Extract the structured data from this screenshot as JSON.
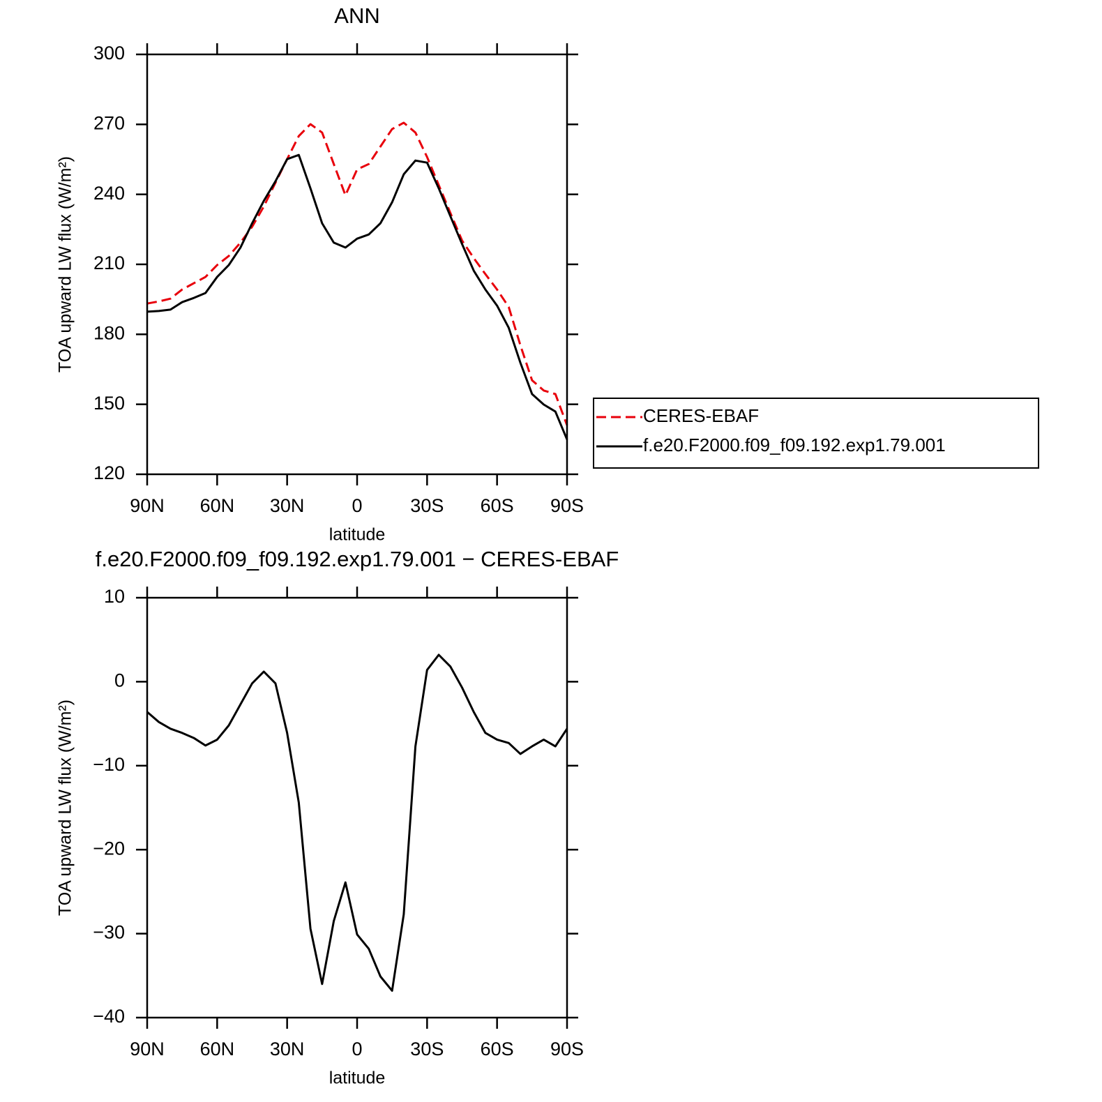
{
  "chart_data": [
    {
      "type": "line",
      "title": "ANN",
      "xlabel": "latitude",
      "ylabel": "TOA upward LW flux (W/m²)",
      "x": [
        90,
        85,
        80,
        75,
        70,
        65,
        60,
        55,
        50,
        45,
        40,
        35,
        30,
        25,
        20,
        15,
        10,
        5,
        0,
        -5,
        -10,
        -15,
        -20,
        -25,
        -30,
        -35,
        -40,
        -45,
        -50,
        -55,
        -60,
        -65,
        -70,
        -75,
        -80,
        -85,
        -90
      ],
      "series": [
        {
          "name": "CERES-EBAF",
          "color": "#e8000b",
          "linestyle": "dashed",
          "values": [
            193.2,
            194.1,
            195.3,
            199.2,
            201.9,
            204.6,
            209.7,
            213.6,
            219.3,
            226.1,
            234.8,
            245,
            255.1,
            265,
            270.1,
            266.5,
            253,
            239.6,
            250.7,
            253,
            260.5,
            268,
            270.7,
            266.5,
            256,
            244,
            232,
            220.2,
            212.7,
            205.8,
            199.2,
            191.7,
            175.3,
            160.3,
            155.9,
            154.4,
            141
          ]
        },
        {
          "name": "f.e20.F2000.f09_f09.192.exp1.79.001",
          "color": "#000000",
          "linestyle": "solid",
          "values": [
            189.7,
            190,
            190.6,
            193.8,
            195.6,
            197.7,
            204.6,
            209.7,
            217.2,
            227.6,
            237.2,
            245.6,
            255.1,
            256.9,
            242.6,
            227.6,
            219.3,
            217.2,
            221,
            222.8,
            227.6,
            236.6,
            248.6,
            254.5,
            253.6,
            242.6,
            230.6,
            218.7,
            207.3,
            199.2,
            192.3,
            182.8,
            167.8,
            154.4,
            149.9,
            146.9,
            134.9
          ]
        }
      ],
      "xlim": [
        90,
        -90
      ],
      "xticks": [
        {
          "value": 90,
          "label": "90N"
        },
        {
          "value": 60,
          "label": "60N"
        },
        {
          "value": 30,
          "label": "30N"
        },
        0,
        {
          "value": -30,
          "label": "30S"
        },
        {
          "value": -60,
          "label": "60S"
        },
        {
          "value": -90,
          "label": "90S"
        }
      ],
      "ylim": [
        120,
        300
      ],
      "yticks": [
        120,
        150,
        180,
        210,
        240,
        270,
        300
      ],
      "legend": "right"
    },
    {
      "type": "line",
      "title": "f.e20.F2000.f09_f09.192.exp1.79.001 − CERES-EBAF",
      "xlabel": "latitude",
      "ylabel": "TOA upward LW flux (W/m²)",
      "x": [
        90,
        85,
        80,
        75,
        70,
        65,
        60,
        55,
        50,
        45,
        40,
        35,
        30,
        25,
        20,
        15,
        10,
        5,
        0,
        -5,
        -10,
        -15,
        -20,
        -25,
        -30,
        -35,
        -40,
        -45,
        -50,
        -55,
        -60,
        -65,
        -70,
        -75,
        -80,
        -85,
        -90
      ],
      "series": [
        {
          "color": "#000000",
          "linestyle": "solid",
          "values": [
            -3.6,
            -4.8,
            -5.6,
            -6.1,
            -6.7,
            -7.6,
            -6.9,
            -5.2,
            -2.7,
            -0.2,
            1.2,
            -0.2,
            -6.1,
            -14.4,
            -29.4,
            -36,
            -28.5,
            -23.9,
            -30.1,
            -31.8,
            -35.1,
            -36.8,
            -27.7,
            -7.7,
            1.4,
            3.2,
            1.8,
            -0.7,
            -3.6,
            -6.1,
            -6.9,
            -7.3,
            -8.6,
            -7.7,
            -6.9,
            -7.7,
            -5.6
          ]
        }
      ],
      "xlim": [
        90,
        -90
      ],
      "xticks": [
        {
          "value": 90,
          "label": "90N"
        },
        {
          "value": 60,
          "label": "60N"
        },
        {
          "value": 30,
          "label": "30N"
        },
        0,
        {
          "value": -30,
          "label": "30S"
        },
        {
          "value": -60,
          "label": "60S"
        },
        {
          "value": -90,
          "label": "90S"
        }
      ],
      "ylim": [
        -40,
        10
      ],
      "yticks": [
        {
          "value": -40,
          "label": "−40"
        },
        {
          "value": -30,
          "label": "−30"
        },
        {
          "value": -20,
          "label": "−20"
        },
        {
          "value": -10,
          "label": "−10"
        },
        0,
        10
      ]
    }
  ]
}
